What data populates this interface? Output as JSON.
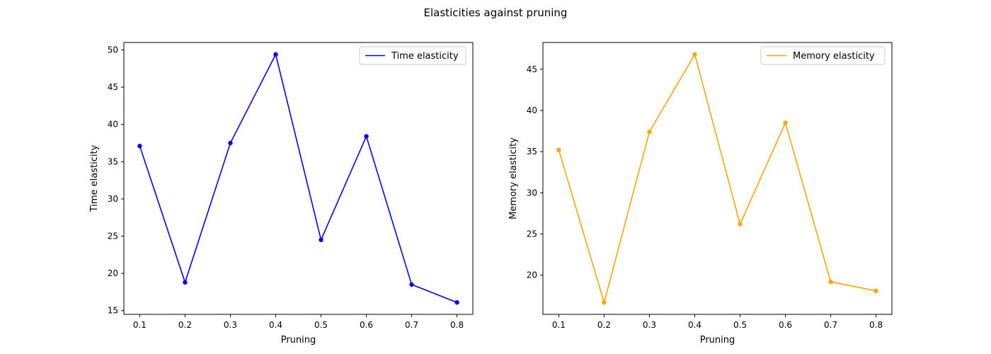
{
  "figure": {
    "suptitle": "Elasticities against pruning"
  },
  "chart_data": [
    {
      "type": "line",
      "xlabel": "Pruning",
      "ylabel": "Time elasticity",
      "x": [
        0.1,
        0.2,
        0.3,
        0.4,
        0.5,
        0.6,
        0.7,
        0.8
      ],
      "x_ticks": [
        "0.1",
        "0.2",
        "0.3",
        "0.4",
        "0.5",
        "0.6",
        "0.7",
        "0.8"
      ],
      "xlim": [
        0.065,
        0.835
      ],
      "ylim": [
        14.5,
        51.0
      ],
      "y_ticks": [
        "15",
        "20",
        "25",
        "30",
        "35",
        "40",
        "45",
        "50"
      ],
      "legend": "upper right",
      "grid": false,
      "series": [
        {
          "name": "Time elasticity",
          "color": "#0000ff",
          "marker": "circle",
          "values": [
            37.1,
            18.8,
            37.5,
            49.4,
            24.5,
            38.4,
            18.5,
            16.1
          ]
        }
      ]
    },
    {
      "type": "line",
      "xlabel": "Pruning",
      "ylabel": "Memory elasticity",
      "x": [
        0.1,
        0.2,
        0.3,
        0.4,
        0.5,
        0.6,
        0.7,
        0.8
      ],
      "x_ticks": [
        "0.1",
        "0.2",
        "0.3",
        "0.4",
        "0.5",
        "0.6",
        "0.7",
        "0.8"
      ],
      "xlim": [
        0.065,
        0.835
      ],
      "ylim": [
        15.25,
        48.25
      ],
      "y_ticks": [
        "20",
        "25",
        "30",
        "35",
        "40",
        "45"
      ],
      "legend": "upper right",
      "grid": false,
      "series": [
        {
          "name": "Memory elasticity",
          "color": "#ffa500",
          "marker": "circle",
          "values": [
            35.2,
            16.7,
            37.4,
            46.8,
            26.2,
            38.5,
            19.2,
            18.1
          ]
        }
      ]
    }
  ]
}
